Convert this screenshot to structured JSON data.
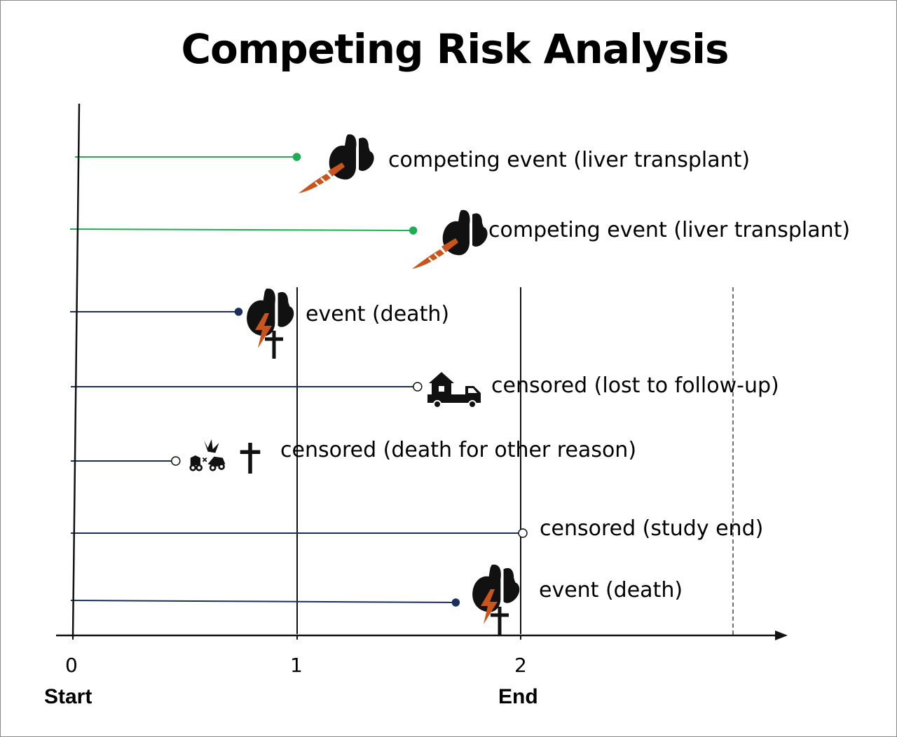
{
  "title": "Competing Risk Analysis",
  "colors": {
    "competing": "#22aa55",
    "event": "#1a2f5e",
    "organ": "#111111",
    "accent": "#c8551e"
  },
  "axis": {
    "ticks": [
      "0",
      "1",
      "2"
    ],
    "start_label": "Start",
    "end_label": "End"
  },
  "subjects": [
    {
      "label": "competing event (liver transplant)",
      "end_time": 1.0,
      "marker": "filled",
      "kind": "competing",
      "icon": "liver-transplant-icon"
    },
    {
      "label": "competing event (liver transplant)",
      "end_time": 1.52,
      "marker": "filled",
      "kind": "competing",
      "icon": "liver-transplant-icon"
    },
    {
      "label": "event (death)",
      "end_time": 0.74,
      "marker": "filled",
      "kind": "event",
      "icon": "liver-death-icon"
    },
    {
      "label": "censored (lost to follow-up)",
      "end_time": 1.53,
      "marker": "open",
      "kind": "event",
      "icon": "moving-house-icon"
    },
    {
      "label": "censored (death for other reason)",
      "end_time": 0.45,
      "marker": "open",
      "kind": "event",
      "icon": "car-crash-death-icon"
    },
    {
      "label": "censored (study end)",
      "end_time": 2.0,
      "marker": "open",
      "kind": "event",
      "icon": "none"
    },
    {
      "label": "event (death)",
      "end_time": 1.71,
      "marker": "filled",
      "kind": "event",
      "icon": "liver-death-icon"
    }
  ]
}
